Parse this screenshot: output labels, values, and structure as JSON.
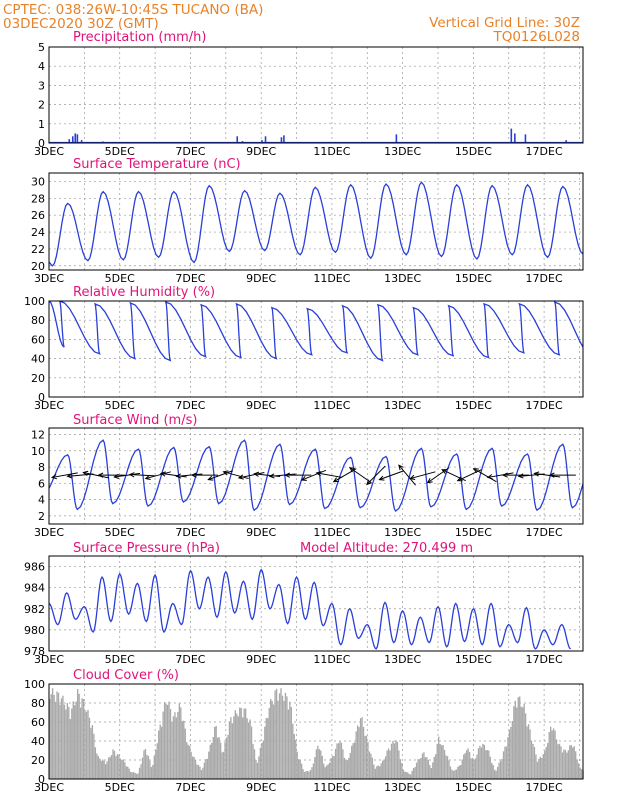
{
  "header": {
    "line1": "CPTEC:   038:26W-10:45S   TUCANO (BA)",
    "line2": "03DEC2020 30Z (GMT)",
    "grid_note": "Vertical Grid Line: 30Z",
    "code": "TQ0126L028"
  },
  "colors": {
    "header": "#e8822a",
    "title": "#e0137a",
    "line": "#2a3fd8",
    "cloud": "#a9a9a9",
    "grid": "#9a9a9a"
  },
  "chart_data": [
    {
      "type": "bar",
      "key": "precip",
      "title": "Precipitation (mm/h)",
      "ylim": [
        0,
        5
      ],
      "yticks": [
        0,
        1,
        2,
        3,
        4,
        5
      ],
      "xticks": [
        "3DEC",
        "5DEC",
        "7DEC",
        "9DEC",
        "11DEC",
        "13DEC",
        "15DEC",
        "17DEC"
      ],
      "xlim_days": [
        3,
        18.1
      ],
      "grid": true,
      "events": [
        [
          3.55,
          0.2
        ],
        [
          3.65,
          0.35
        ],
        [
          3.72,
          0.5
        ],
        [
          3.78,
          0.45
        ],
        [
          3.9,
          0.15
        ],
        [
          4.5,
          0.08
        ],
        [
          5.0,
          0.05
        ],
        [
          6.0,
          0.05
        ],
        [
          6.8,
          0.05
        ],
        [
          8.3,
          0.35
        ],
        [
          8.45,
          0.1
        ],
        [
          9.0,
          0.15
        ],
        [
          9.1,
          0.35
        ],
        [
          9.55,
          0.3
        ],
        [
          9.62,
          0.4
        ],
        [
          10.3,
          0.05
        ],
        [
          12.5,
          0.05
        ],
        [
          12.8,
          0.45
        ],
        [
          13.8,
          0.05
        ],
        [
          16.05,
          0.75
        ],
        [
          16.15,
          0.5
        ],
        [
          16.45,
          0.45
        ],
        [
          17.2,
          0.05
        ],
        [
          17.6,
          0.15
        ]
      ]
    },
    {
      "type": "line",
      "key": "temp",
      "title": "Surface Temperature (nC)",
      "ylim": [
        19.5,
        31
      ],
      "yticks": [
        20,
        22,
        24,
        26,
        28,
        30
      ],
      "xticks": [
        "3DEC",
        "5DEC",
        "7DEC",
        "9DEC",
        "11DEC",
        "13DEC",
        "15DEC",
        "17DEC"
      ],
      "xlim_days": [
        3,
        18.1
      ],
      "grid": true,
      "daily_max": [
        27.4,
        28.8,
        28.8,
        28.8,
        29.5,
        28.9,
        28.6,
        29.3,
        29.6,
        29.7,
        29.9,
        29.6,
        29.5,
        29.6,
        29.4,
        29.6
      ],
      "daily_min": [
        20.0,
        20.6,
        20.7,
        21.0,
        20.4,
        21.7,
        21.8,
        21.3,
        21.6,
        20.9,
        21.3,
        21.1,
        20.8,
        21.3,
        21.0,
        21.4
      ]
    },
    {
      "type": "line",
      "key": "rh",
      "title": "Relative Humidity (%)",
      "ylim": [
        0,
        100
      ],
      "yticks": [
        0,
        20,
        40,
        60,
        80,
        100
      ],
      "xticks": [
        "3DEC",
        "5DEC",
        "7DEC",
        "9DEC",
        "11DEC",
        "13DEC",
        "15DEC",
        "17DEC"
      ],
      "xlim_days": [
        3,
        18.1
      ],
      "grid": true,
      "daily_max": [
        100,
        97,
        98,
        99,
        96,
        97,
        93,
        92,
        95,
        96,
        93,
        95,
        97,
        97,
        99,
        97
      ],
      "daily_min": [
        52,
        45,
        40,
        38,
        42,
        41,
        40,
        44,
        46,
        38,
        44,
        43,
        41,
        46,
        44,
        40
      ]
    },
    {
      "type": "line",
      "key": "wind",
      "title": "Surface Wind (m/s)",
      "ylim": [
        1,
        12.8
      ],
      "yticks": [
        2,
        4,
        6,
        8,
        10,
        12
      ],
      "xticks": [
        "3DEC",
        "5DEC",
        "7DEC",
        "9DEC",
        "11DEC",
        "13DEC",
        "15DEC",
        "17DEC"
      ],
      "xlim_days": [
        3,
        18.1
      ],
      "grid": true,
      "daily_max": [
        9.5,
        11.3,
        10.2,
        10.4,
        10.5,
        11.3,
        10.8,
        10.2,
        9.2,
        9.3,
        10.3,
        9.6,
        10.3,
        9.6,
        10.8,
        11.2
      ],
      "daily_min": [
        4.5,
        2.8,
        3.5,
        3.2,
        3.7,
        3.5,
        2.7,
        3.4,
        2.9,
        3.0,
        2.6,
        3.1,
        2.8,
        3.2,
        2.7,
        3.0
      ],
      "vector_angles_deg": [
        10,
        5,
        -12,
        0,
        8,
        -3,
        15,
        -8,
        5,
        0,
        20,
        -15,
        12,
        -6,
        5,
        0,
        22,
        -10,
        30,
        -35,
        45,
        20,
        -50,
        15,
        35,
        -25,
        25,
        -30,
        10,
        0,
        5,
        -8,
        0
      ]
    },
    {
      "type": "line",
      "key": "pres",
      "title": "Surface Pressure (hPa)",
      "annotation": "Model Altitude: 270.499  m",
      "ylim": [
        978,
        987
      ],
      "yticks": [
        978,
        980,
        982,
        984,
        986
      ],
      "xticks": [
        "3DEC",
        "5DEC",
        "7DEC",
        "9DEC",
        "11DEC",
        "13DEC",
        "15DEC",
        "17DEC"
      ],
      "xlim_days": [
        3,
        18.1
      ],
      "grid": true,
      "peaks": [
        [
          3.0,
          982.5
        ],
        [
          3.5,
          983.5
        ],
        [
          4.0,
          982.2
        ],
        [
          4.5,
          985.0
        ],
        [
          5.0,
          985.3
        ],
        [
          5.5,
          984.4
        ],
        [
          6.0,
          985.2
        ],
        [
          6.5,
          982.5
        ],
        [
          7.0,
          985.6
        ],
        [
          7.5,
          985.0
        ],
        [
          8.0,
          985.5
        ],
        [
          8.5,
          984.6
        ],
        [
          9.0,
          985.7
        ],
        [
          9.5,
          984.3
        ],
        [
          10.0,
          985.0
        ],
        [
          10.5,
          984.5
        ],
        [
          11.0,
          982.5
        ],
        [
          11.5,
          982.0
        ],
        [
          12.0,
          980.5
        ],
        [
          12.5,
          982.6
        ],
        [
          13.0,
          981.8
        ],
        [
          13.5,
          981.2
        ],
        [
          14.0,
          982.2
        ],
        [
          14.5,
          982.5
        ],
        [
          15.0,
          982.0
        ],
        [
          15.5,
          982.5
        ],
        [
          16.0,
          980.5
        ],
        [
          16.5,
          982.1
        ],
        [
          17.0,
          980.0
        ],
        [
          17.5,
          980.5
        ]
      ],
      "troughs": [
        [
          3.25,
          980.5
        ],
        [
          3.75,
          981.0
        ],
        [
          4.25,
          979.8
        ],
        [
          4.75,
          980.8
        ],
        [
          5.25,
          981.5
        ],
        [
          5.75,
          980.8
        ],
        [
          6.25,
          979.8
        ],
        [
          6.75,
          980.5
        ],
        [
          7.25,
          982.0
        ],
        [
          7.75,
          981.2
        ],
        [
          8.25,
          981.6
        ],
        [
          8.75,
          981.0
        ],
        [
          9.25,
          982.0
        ],
        [
          9.75,
          980.6
        ],
        [
          10.25,
          981.0
        ],
        [
          10.75,
          980.4
        ],
        [
          11.25,
          978.6
        ],
        [
          11.75,
          979.2
        ],
        [
          12.25,
          978.2
        ],
        [
          12.75,
          978.8
        ],
        [
          13.25,
          978.6
        ],
        [
          13.75,
          978.8
        ],
        [
          14.25,
          978.4
        ],
        [
          14.75,
          978.9
        ],
        [
          15.25,
          978.6
        ],
        [
          15.75,
          978.4
        ],
        [
          16.25,
          978.8
        ],
        [
          16.75,
          978.2
        ],
        [
          17.25,
          978.6
        ],
        [
          17.75,
          978.2
        ]
      ]
    },
    {
      "type": "bar",
      "key": "cloud",
      "title": "Cloud Cover (%)",
      "ylim": [
        0,
        100
      ],
      "yticks": [
        0,
        20,
        40,
        60,
        80,
        100
      ],
      "xticks": [
        "3DEC",
        "5DEC",
        "7DEC",
        "9DEC",
        "11DEC",
        "13DEC",
        "15DEC",
        "17DEC"
      ],
      "xlim_days": [
        3,
        18.1
      ],
      "grid": true,
      "envelope": [
        [
          3.0,
          97
        ],
        [
          3.3,
          92
        ],
        [
          3.6,
          75
        ],
        [
          3.8,
          96
        ],
        [
          4.0,
          82
        ],
        [
          4.2,
          60
        ],
        [
          4.35,
          25
        ],
        [
          4.6,
          18
        ],
        [
          4.8,
          32
        ],
        [
          5.1,
          20
        ],
        [
          5.3,
          8
        ],
        [
          5.5,
          6
        ],
        [
          5.7,
          35
        ],
        [
          5.9,
          12
        ],
        [
          6.1,
          55
        ],
        [
          6.3,
          90
        ],
        [
          6.5,
          68
        ],
        [
          6.7,
          82
        ],
        [
          6.9,
          40
        ],
        [
          7.1,
          22
        ],
        [
          7.3,
          10
        ],
        [
          7.5,
          30
        ],
        [
          7.7,
          60
        ],
        [
          7.9,
          28
        ],
        [
          8.1,
          65
        ],
        [
          8.3,
          75
        ],
        [
          8.5,
          78
        ],
        [
          8.7,
          60
        ],
        [
          8.85,
          15
        ],
        [
          9.0,
          40
        ],
        [
          9.2,
          80
        ],
        [
          9.4,
          97
        ],
        [
          9.6,
          95
        ],
        [
          9.8,
          85
        ],
        [
          10.0,
          30
        ],
        [
          10.2,
          8
        ],
        [
          10.4,
          10
        ],
        [
          10.6,
          40
        ],
        [
          10.8,
          12
        ],
        [
          11.0,
          25
        ],
        [
          11.2,
          45
        ],
        [
          11.4,
          18
        ],
        [
          11.6,
          42
        ],
        [
          11.8,
          70
        ],
        [
          12.0,
          40
        ],
        [
          12.2,
          12
        ],
        [
          12.4,
          18
        ],
        [
          12.6,
          35
        ],
        [
          12.8,
          45
        ],
        [
          13.0,
          10
        ],
        [
          13.2,
          5
        ],
        [
          13.4,
          20
        ],
        [
          13.6,
          30
        ],
        [
          13.8,
          12
        ],
        [
          14.0,
          45
        ],
        [
          14.2,
          30
        ],
        [
          14.4,
          8
        ],
        [
          14.6,
          15
        ],
        [
          14.8,
          35
        ],
        [
          15.0,
          20
        ],
        [
          15.2,
          40
        ],
        [
          15.4,
          32
        ],
        [
          15.6,
          8
        ],
        [
          15.8,
          25
        ],
        [
          16.0,
          52
        ],
        [
          16.2,
          92
        ],
        [
          16.4,
          82
        ],
        [
          16.6,
          50
        ],
        [
          16.8,
          20
        ],
        [
          17.0,
          30
        ],
        [
          17.2,
          62
        ],
        [
          17.4,
          38
        ],
        [
          17.6,
          30
        ],
        [
          17.8,
          40
        ],
        [
          18.0,
          12
        ],
        [
          18.1,
          10
        ]
      ]
    }
  ]
}
